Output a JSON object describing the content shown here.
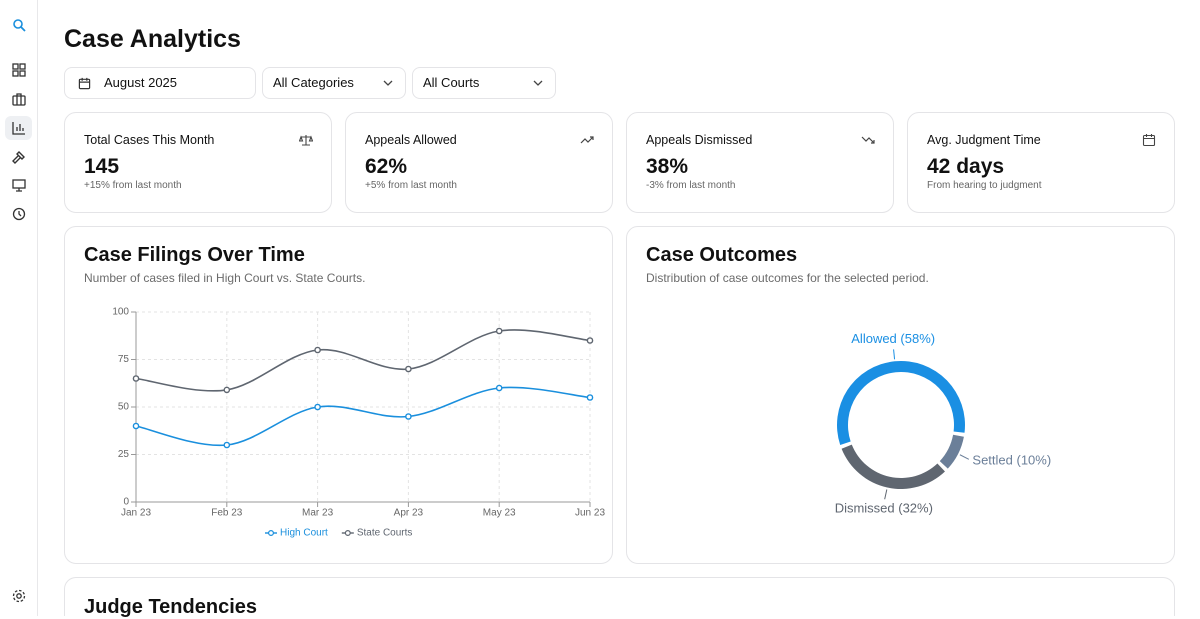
{
  "header": {
    "title": "Case Analytics"
  },
  "filters": [
    "August 2025",
    "All Categories",
    "All Courts"
  ],
  "stats": [
    {
      "label": "Total Cases This Month",
      "value": "145",
      "note": "+15% from last month"
    },
    {
      "label": "Appeals Allowed",
      "value": "62%",
      "note": "+5% from last month"
    },
    {
      "label": "Appeals Dismissed",
      "value": "38%",
      "note": "-3% from last month"
    },
    {
      "label": "Avg. Judgment Time",
      "value": "42 days",
      "note": "From hearing to judgment"
    }
  ],
  "chart_data": [
    {
      "type": "line",
      "title": "Case Filings Over Time",
      "subtitle": "Number of cases filed in High Court vs. State Courts.",
      "categories": [
        "Jan 23",
        "Feb 23",
        "Mar 23",
        "Apr 23",
        "May 23",
        "Jun 23"
      ],
      "series": [
        {
          "name": "High Court",
          "color": "#1a8fdd",
          "values": [
            40,
            30,
            50,
            45,
            60,
            55
          ]
        },
        {
          "name": "State Courts",
          "color": "#5f6670",
          "values": [
            65,
            59,
            80,
            70,
            90,
            85
          ]
        }
      ],
      "ylim": [
        0,
        100
      ],
      "yticks": [
        0,
        25,
        50,
        75,
        100
      ],
      "grid": true
    },
    {
      "type": "pie",
      "title": "Case Outcomes",
      "subtitle": "Distribution of case outcomes for the selected period.",
      "values": [
        58,
        10,
        32
      ],
      "value_labels": [
        "Allowed (58%)",
        "Settled (10%)",
        "Dismissed (32%)"
      ],
      "colors": [
        "#1a8fe3",
        "#6b7f99",
        "#5f6670"
      ]
    }
  ],
  "section": {
    "title": "Judge Tendencies"
  }
}
